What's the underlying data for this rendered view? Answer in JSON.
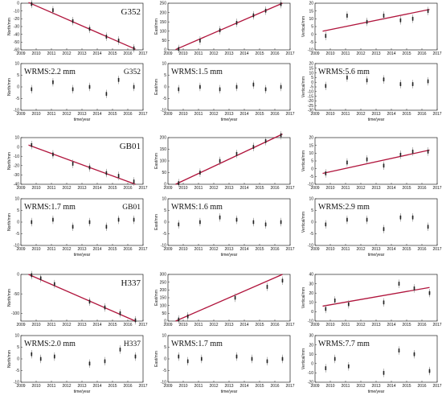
{
  "chart_data": [
    {
      "type": "scatter",
      "station": "G352",
      "component": "North",
      "ylabel": "North/mm",
      "xlim": [
        2009,
        2017
      ],
      "ylim": [
        -60,
        0
      ],
      "yticks": [
        -60,
        -50,
        -40,
        -30,
        -20,
        -10,
        0
      ],
      "xticks": [
        2009,
        2010,
        2011,
        2012,
        2013,
        2014,
        2015,
        2016,
        2017
      ],
      "xlabel": "",
      "label": "G352",
      "x": [
        2009.7,
        2011.1,
        2012.4,
        2013.5,
        2014.6,
        2015.4,
        2016.4
      ],
      "y": [
        -1,
        -9,
        -23,
        -33,
        -43,
        -48,
        -58
      ],
      "fit": [
        [
          2009.5,
          1
        ],
        [
          2016.5,
          -59
        ]
      ]
    },
    {
      "type": "scatter",
      "station": "G352",
      "component": "East",
      "ylabel": "East/mm",
      "xlim": [
        2009,
        2017
      ],
      "ylim": [
        0,
        250
      ],
      "yticks": [
        0,
        50,
        100,
        150,
        200,
        250
      ],
      "xticks": [
        2009,
        2010,
        2011,
        2012,
        2013,
        2014,
        2015,
        2016,
        2017
      ],
      "xlabel": "",
      "x": [
        2009.7,
        2011.1,
        2012.4,
        2013.5,
        2014.6,
        2015.4,
        2016.4
      ],
      "y": [
        5,
        50,
        105,
        145,
        185,
        210,
        245
      ],
      "fit": [
        [
          2009.5,
          2
        ],
        [
          2016.5,
          250
        ]
      ]
    },
    {
      "type": "scatter",
      "station": "G352",
      "component": "Vertical",
      "ylabel": "Vertical/mm",
      "xlim": [
        2009,
        2017
      ],
      "ylim": [
        -10,
        20
      ],
      "yticks": [
        -10,
        -5,
        0,
        5,
        10,
        15,
        20
      ],
      "xticks": [
        2009,
        2010,
        2011,
        2012,
        2013,
        2014,
        2015,
        2016,
        2017
      ],
      "xlabel": "",
      "x": [
        2009.7,
        2011.1,
        2012.4,
        2013.5,
        2014.6,
        2015.4,
        2016.4
      ],
      "y": [
        -1,
        12,
        8,
        12,
        9,
        10,
        15
      ],
      "fit": [
        [
          2009.5,
          2
        ],
        [
          2016.5,
          16
        ]
      ]
    },
    {
      "type": "scatter",
      "station": "G352",
      "component": "North residual",
      "ylabel": "North/mm",
      "xlim": [
        2009,
        2017
      ],
      "ylim": [
        -10,
        10
      ],
      "yticks": [
        -10,
        -5,
        0,
        5,
        10
      ],
      "xticks": [
        2009,
        2010,
        2011,
        2012,
        2013,
        2014,
        2015,
        2016,
        2017
      ],
      "xlabel": "time/year",
      "wrms": "WRMS:2.2 mm",
      "label": "G352",
      "x": [
        2009.7,
        2011.1,
        2012.4,
        2013.5,
        2014.6,
        2015.4,
        2016.4
      ],
      "y": [
        -1,
        2,
        -1,
        0,
        -3,
        3,
        0
      ]
    },
    {
      "type": "scatter",
      "station": "G352",
      "component": "East residual",
      "ylabel": "East/mm",
      "xlim": [
        2009,
        2017
      ],
      "ylim": [
        -10,
        10
      ],
      "yticks": [
        -10,
        -5,
        0,
        5,
        10
      ],
      "xticks": [
        2009,
        2010,
        2011,
        2012,
        2013,
        2014,
        2015,
        2016,
        2017
      ],
      "xlabel": "time/year",
      "wrms": "WRMS:1.5 mm",
      "x": [
        2009.7,
        2011.1,
        2012.4,
        2013.5,
        2014.6,
        2015.4,
        2016.4
      ],
      "y": [
        -1,
        0,
        -1,
        0,
        1,
        -1,
        0
      ]
    },
    {
      "type": "scatter",
      "station": "G352",
      "component": "Vertical residual",
      "ylabel": "Vertical/mm",
      "xlim": [
        2009,
        2017
      ],
      "ylim": [
        -30,
        20
      ],
      "yticks": [
        -30,
        -25,
        -20,
        -15,
        -10,
        -5,
        0,
        5,
        10,
        15,
        20
      ],
      "xticks": [
        2009,
        2010,
        2011,
        2012,
        2013,
        2014,
        2015,
        2016,
        2017
      ],
      "xlabel": "time/year",
      "wrms": "WRMS:5.6 mm",
      "x": [
        2009.7,
        2011.1,
        2012.4,
        2013.5,
        2014.6,
        2015.4,
        2016.4
      ],
      "y": [
        -4,
        5,
        2,
        3,
        -2,
        -2,
        1
      ]
    },
    {
      "type": "scatter",
      "station": "GB01",
      "component": "North",
      "ylabel": "North/mm",
      "xlim": [
        2009,
        2017
      ],
      "ylim": [
        -40,
        10
      ],
      "yticks": [
        -40,
        -30,
        -20,
        -10,
        0,
        10
      ],
      "xticks": [
        2009,
        2010,
        2011,
        2012,
        2013,
        2014,
        2015,
        2016,
        2017
      ],
      "xlabel": "",
      "label": "GB01",
      "x": [
        2009.7,
        2011.1,
        2012.4,
        2013.5,
        2014.6,
        2015.4,
        2016.4
      ],
      "y": [
        2,
        -8,
        -18,
        -22,
        -28,
        -31,
        -37
      ],
      "fit": [
        [
          2009.5,
          2
        ],
        [
          2016.5,
          -40
        ]
      ]
    },
    {
      "type": "scatter",
      "station": "GB01",
      "component": "East",
      "ylabel": "East/mm",
      "xlim": [
        2009,
        2017
      ],
      "ylim": [
        0,
        200
      ],
      "yticks": [
        0,
        50,
        100,
        150,
        200
      ],
      "xticks": [
        2009,
        2010,
        2011,
        2012,
        2013,
        2014,
        2015,
        2016,
        2017
      ],
      "xlabel": "",
      "x": [
        2009.7,
        2011.1,
        2012.4,
        2013.5,
        2014.6,
        2015.4,
        2016.4
      ],
      "y": [
        5,
        50,
        100,
        130,
        160,
        185,
        210
      ],
      "fit": [
        [
          2009.5,
          0
        ],
        [
          2016.5,
          215
        ]
      ]
    },
    {
      "type": "scatter",
      "station": "GB01",
      "component": "Vertical",
      "ylabel": "Vertical/mm",
      "xlim": [
        2009,
        2017
      ],
      "ylim": [
        -10,
        20
      ],
      "yticks": [
        -10,
        -5,
        0,
        5,
        10,
        15,
        20
      ],
      "xticks": [
        2009,
        2010,
        2011,
        2012,
        2013,
        2014,
        2015,
        2016,
        2017
      ],
      "xlabel": "",
      "x": [
        2009.7,
        2011.1,
        2012.4,
        2013.5,
        2014.6,
        2015.4,
        2016.4
      ],
      "y": [
        -3,
        4,
        6,
        2,
        9,
        11,
        11
      ],
      "fit": [
        [
          2009.5,
          -3
        ],
        [
          2016.5,
          12
        ]
      ]
    },
    {
      "type": "scatter",
      "station": "GB01",
      "component": "North residual",
      "ylabel": "North/mm",
      "xlim": [
        2009,
        2017
      ],
      "ylim": [
        -10,
        10
      ],
      "yticks": [
        -10,
        -5,
        0,
        5,
        10
      ],
      "xticks": [
        2009,
        2010,
        2011,
        2012,
        2013,
        2014,
        2015,
        2016,
        2017
      ],
      "xlabel": "time/year",
      "wrms": "WRMS:1.7 mm",
      "label": "GB01",
      "x": [
        2009.7,
        2011.1,
        2012.4,
        2013.5,
        2014.6,
        2015.4,
        2016.4
      ],
      "y": [
        0,
        1,
        -2,
        0,
        -2,
        1,
        1
      ]
    },
    {
      "type": "scatter",
      "station": "GB01",
      "component": "East residual",
      "ylabel": "East/mm",
      "xlim": [
        2009,
        2017
      ],
      "ylim": [
        -10,
        10
      ],
      "yticks": [
        -10,
        -5,
        0,
        5,
        10
      ],
      "xticks": [
        2009,
        2010,
        2011,
        2012,
        2013,
        2014,
        2015,
        2016,
        2017
      ],
      "xlabel": "time/year",
      "wrms": "WRMS:1.6 mm",
      "x": [
        2009.7,
        2011.1,
        2012.4,
        2013.5,
        2014.6,
        2015.4,
        2016.4
      ],
      "y": [
        -1,
        0,
        2,
        1,
        0,
        -1,
        0
      ]
    },
    {
      "type": "scatter",
      "station": "GB01",
      "component": "Vertical residual",
      "ylabel": "Vertical/mm",
      "xlim": [
        2009,
        2017
      ],
      "ylim": [
        -10,
        10
      ],
      "yticks": [
        -10,
        -5,
        0,
        5,
        10
      ],
      "xticks": [
        2009,
        2010,
        2011,
        2012,
        2013,
        2014,
        2015,
        2016,
        2017
      ],
      "xlabel": "time/year",
      "wrms": "WRMS:2.9 mm",
      "x": [
        2009.7,
        2011.1,
        2012.4,
        2013.5,
        2014.6,
        2015.4,
        2016.4
      ],
      "y": [
        -1,
        1,
        1,
        -3,
        2,
        2,
        -2
      ]
    },
    {
      "type": "scatter",
      "station": "H337",
      "component": "North",
      "ylabel": "North/mm",
      "xlim": [
        2009,
        2017
      ],
      "ylim": [
        -120,
        0
      ],
      "yticks": [
        -100,
        -50,
        0
      ],
      "xticks": [
        2009,
        2010,
        2011,
        2012,
        2013,
        2014,
        2015,
        2016,
        2017
      ],
      "xlabel": "",
      "label": "H337",
      "x": [
        2009.7,
        2010.3,
        2011.2,
        2013.5,
        2014.5,
        2015.5,
        2016.5
      ],
      "y": [
        -2,
        -10,
        -25,
        -70,
        -85,
        -100,
        -118
      ],
      "fit": [
        [
          2009.5,
          0
        ],
        [
          2016.5,
          -120
        ]
      ]
    },
    {
      "type": "scatter",
      "station": "H337",
      "component": "East",
      "ylabel": "East/mm",
      "xlim": [
        2009,
        2017
      ],
      "ylim": [
        0,
        300
      ],
      "yticks": [
        0,
        50,
        100,
        150,
        200,
        250,
        300
      ],
      "xticks": [
        2009,
        2010,
        2011,
        2012,
        2013,
        2014,
        2015,
        2016,
        2017
      ],
      "xlabel": "",
      "x": [
        2009.7,
        2010.3,
        2013.4,
        2015.5,
        2016.5
      ],
      "y": [
        10,
        30,
        150,
        220,
        260
      ],
      "fit": [
        [
          2009.5,
          0
        ],
        [
          2016.5,
          300
        ]
      ]
    },
    {
      "type": "scatter",
      "station": "H337",
      "component": "Vertical",
      "ylabel": "Vertical/mm",
      "xlim": [
        2009,
        2017
      ],
      "ylim": [
        -10,
        40
      ],
      "yticks": [
        -10,
        0,
        10,
        20,
        30,
        40
      ],
      "xticks": [
        2009,
        2010,
        2011,
        2012,
        2013,
        2014,
        2015,
        2016,
        2017
      ],
      "xlabel": "",
      "x": [
        2009.7,
        2010.3,
        2011.2,
        2013.5,
        2014.5,
        2015.5,
        2016.5
      ],
      "y": [
        3,
        12,
        8,
        10,
        30,
        25,
        20
      ],
      "fit": [
        [
          2009.5,
          6
        ],
        [
          2016.5,
          26
        ]
      ]
    },
    {
      "type": "scatter",
      "station": "H337",
      "component": "North residual",
      "ylabel": "North/mm",
      "xlim": [
        2009,
        2017
      ],
      "ylim": [
        -10,
        10
      ],
      "yticks": [
        -10,
        -5,
        0,
        5,
        10
      ],
      "xticks": [
        2009,
        2010,
        2011,
        2012,
        2013,
        2014,
        2015,
        2016,
        2017
      ],
      "xlabel": "time/year",
      "wrms": "WRMS:2.0 mm",
      "label": "H337",
      "x": [
        2009.7,
        2010.3,
        2011.2,
        2013.5,
        2014.5,
        2015.5,
        2016.5
      ],
      "y": [
        2,
        0,
        1,
        -2,
        -1,
        4,
        1
      ]
    },
    {
      "type": "scatter",
      "station": "H337",
      "component": "East residual",
      "ylabel": "East/mm",
      "xlim": [
        2009,
        2017
      ],
      "ylim": [
        -10,
        10
      ],
      "yticks": [
        -10,
        -5,
        0,
        5,
        10
      ],
      "xticks": [
        2009,
        2010,
        2011,
        2012,
        2013,
        2014,
        2015,
        2016,
        2017
      ],
      "xlabel": "time/year",
      "wrms": "WRMS:1.7 mm",
      "x": [
        2009.7,
        2010.3,
        2011.2,
        2013.5,
        2014.5,
        2015.5,
        2016.5
      ],
      "y": [
        1,
        -1,
        0,
        1,
        0,
        -1,
        0
      ]
    },
    {
      "type": "scatter",
      "station": "H337",
      "component": "Vertical residual",
      "ylabel": "Vertical/mm",
      "xlim": [
        2009,
        2017
      ],
      "ylim": [
        -20,
        30
      ],
      "yticks": [
        -20,
        -10,
        0,
        10,
        20,
        30
      ],
      "xticks": [
        2009,
        2010,
        2011,
        2012,
        2013,
        2014,
        2015,
        2016,
        2017
      ],
      "xlabel": "time/year",
      "wrms": "WRMS:7.7 mm",
      "x": [
        2009.7,
        2010.3,
        2011.2,
        2013.5,
        2014.5,
        2015.5,
        2016.5
      ],
      "y": [
        -5,
        5,
        -3,
        -10,
        14,
        10,
        -8
      ]
    }
  ]
}
